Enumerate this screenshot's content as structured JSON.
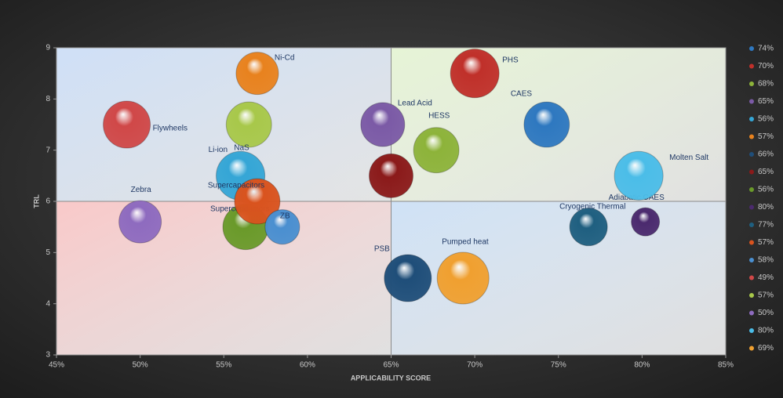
{
  "chart_data": {
    "type": "bubble",
    "xlabel": "APPLICABILITY SCORE",
    "ylabel": "TRL",
    "xlim": [
      45,
      85
    ],
    "xticks": [
      {
        "value": 45,
        "label": "45%"
      },
      {
        "value": 50,
        "label": "50%"
      },
      {
        "value": 55,
        "label": "55%"
      },
      {
        "value": 60,
        "label": "60%"
      },
      {
        "value": 65,
        "label": "65%"
      },
      {
        "value": 70,
        "label": "70%"
      },
      {
        "value": 75,
        "label": "75%"
      },
      {
        "value": 80,
        "label": "80%"
      },
      {
        "value": 85,
        "label": "85%"
      }
    ],
    "ylim": [
      3,
      9
    ],
    "yticks": [
      3,
      4,
      5,
      6,
      7,
      8,
      9
    ],
    "quadrants": {
      "x": 65,
      "y": 6,
      "colors": [
        "#cfe0f7",
        "#e6f4d6",
        "#f9c9c9",
        "#cfe2f6"
      ]
    },
    "legend": "right",
    "series": [
      {
        "name": "74%",
        "color": "#2e78c0",
        "x": [
          74.3
        ],
        "values": [
          7.5
        ],
        "sizes": [
          93
        ],
        "labels": [
          "CAES"
        ]
      },
      {
        "name": "70%",
        "color": "#c0302a",
        "x": [
          70.0
        ],
        "values": [
          8.5
        ],
        "sizes": [
          107
        ],
        "labels": [
          "PHS"
        ]
      },
      {
        "name": "68%",
        "color": "#8db33a",
        "x": [
          67.7
        ],
        "values": [
          7.0
        ],
        "sizes": [
          93
        ],
        "labels": [
          "HESS"
        ]
      },
      {
        "name": "65%",
        "color": "#7b5aa6",
        "x": [
          64.5
        ],
        "values": [
          7.5
        ],
        "sizes": [
          87
        ],
        "labels": [
          "Lead Acid"
        ]
      },
      {
        "name": "56%",
        "color": "#35a6d6",
        "x": [
          56.0
        ],
        "values": [
          6.5
        ],
        "sizes": [
          107
        ],
        "labels": [
          "Li-ion"
        ]
      },
      {
        "name": "57%",
        "color": "#e8821e",
        "x": [
          57.0
        ],
        "values": [
          8.5
        ],
        "sizes": [
          81
        ],
        "labels": [
          "Ni-Cd"
        ]
      },
      {
        "name": "66%",
        "color": "#1f4e79",
        "x": [
          66.0
        ],
        "values": [
          4.5
        ],
        "sizes": [
          100
        ],
        "labels": [
          "PSB"
        ]
      },
      {
        "name": "65%",
        "color": "#8b1a1a",
        "x": [
          65.0
        ],
        "values": [
          6.5
        ],
        "sizes": [
          87
        ]
      },
      {
        "name": "56%",
        "color": "#6a9a2a",
        "x": [
          56.3
        ],
        "values": [
          5.5
        ],
        "sizes": [
          93
        ],
        "labels": [
          "Superconductors"
        ]
      },
      {
        "name": "80%",
        "color": "#4b2a6e",
        "x": [
          80.2
        ],
        "values": [
          5.6
        ],
        "sizes": [
          36
        ],
        "labels": [
          "Adiabatic CAES"
        ]
      },
      {
        "name": "77%",
        "color": "#1f5f80",
        "x": [
          76.8
        ],
        "values": [
          5.5
        ],
        "sizes": [
          64
        ],
        "labels": [
          "Cryogenic Thermal"
        ]
      },
      {
        "name": "57%",
        "color": "#d9531e",
        "x": [
          57.0
        ],
        "values": [
          6.0
        ],
        "sizes": [
          93
        ],
        "labels": [
          "Supercapacitors"
        ]
      },
      {
        "name": "58%",
        "color": "#4a8fd0",
        "x": [
          58.5
        ],
        "values": [
          5.5
        ],
        "sizes": [
          54
        ],
        "labels": [
          "ZB"
        ]
      },
      {
        "name": "49%",
        "color": "#d04848",
        "x": [
          49.2
        ],
        "values": [
          7.5
        ],
        "sizes": [
          100
        ],
        "labels": [
          "Flywheels"
        ]
      },
      {
        "name": "57%",
        "color": "#a8c84a",
        "x": [
          56.5
        ],
        "values": [
          7.5
        ],
        "sizes": [
          93
        ],
        "labels": [
          "NaS"
        ]
      },
      {
        "name": "50%",
        "color": "#8e6bbf",
        "x": [
          50.0
        ],
        "values": [
          5.6
        ],
        "sizes": [
          81
        ],
        "labels": [
          "Zebra"
        ]
      },
      {
        "name": "80%",
        "color": "#4bbde8",
        "x": [
          79.8
        ],
        "values": [
          6.5
        ],
        "sizes": [
          107
        ],
        "labels": [
          "Molten Salt"
        ]
      },
      {
        "name": "69%",
        "color": "#f0a030",
        "x": [
          69.3
        ],
        "values": [
          4.5
        ],
        "sizes": [
          121
        ],
        "labels": [
          "Pumped heat"
        ]
      }
    ]
  }
}
